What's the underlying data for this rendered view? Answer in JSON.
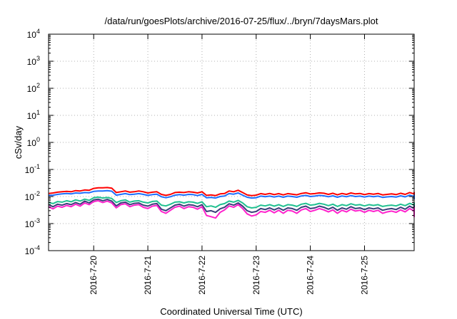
{
  "chart_data": {
    "type": "line",
    "title": "/data/run/goesPlots/archive/2016-07-25/flux/../bryn/7daysMars.plot",
    "xlabel": "Coordinated Universal Time (UTC)",
    "ylabel": "cSv/day",
    "y_scale": "log",
    "ylim": [
      0.0001,
      10000
    ],
    "y_tick_labels": [
      {
        "base": "10",
        "exp": "-4"
      },
      {
        "base": "10",
        "exp": "-3"
      },
      {
        "base": "10",
        "exp": "-2"
      },
      {
        "base": "10",
        "exp": "-1"
      },
      {
        "base": "10",
        "exp": "0"
      },
      {
        "base": "10",
        "exp": "1"
      },
      {
        "base": "10",
        "exp": "2"
      },
      {
        "base": "10",
        "exp": "3"
      },
      {
        "base": "10",
        "exp": "4"
      }
    ],
    "xlim": [
      "2016-07-19 04:00",
      "2016-07-25 22:00"
    ],
    "x_tick_labels": [
      "2016-7-20",
      "2016-7-21",
      "2016-7-22",
      "2016-7-23",
      "2016-7-24",
      "2016-7-25"
    ],
    "grid": true,
    "x_start": "2016-07-19 04:00",
    "x_step_hours": 2,
    "series": [
      {
        "color": "#ff0000",
        "values": [
          0.013,
          0.0135,
          0.0145,
          0.015,
          0.0155,
          0.015,
          0.0165,
          0.016,
          0.0175,
          0.017,
          0.02,
          0.021,
          0.021,
          0.0215,
          0.0205,
          0.014,
          0.015,
          0.016,
          0.0145,
          0.015,
          0.016,
          0.015,
          0.0135,
          0.0145,
          0.015,
          0.012,
          0.011,
          0.012,
          0.014,
          0.0145,
          0.014,
          0.015,
          0.0145,
          0.0135,
          0.015,
          0.011,
          0.0115,
          0.0108,
          0.0125,
          0.013,
          0.016,
          0.015,
          0.017,
          0.014,
          0.0115,
          0.0108,
          0.0112,
          0.0128,
          0.012,
          0.013,
          0.0118,
          0.0128,
          0.0115,
          0.0128,
          0.0122,
          0.0116,
          0.013,
          0.0138,
          0.0124,
          0.0128,
          0.0136,
          0.0132,
          0.012,
          0.0132,
          0.0116,
          0.013,
          0.012,
          0.0135,
          0.0125,
          0.013,
          0.0118,
          0.0128,
          0.0122,
          0.013,
          0.0115,
          0.012,
          0.0125,
          0.0118,
          0.0132,
          0.012,
          0.014,
          0.0125,
          0.0135,
          0.013,
          0.012,
          0.0105,
          0.01,
          0.011,
          0.0125,
          0.013,
          0.014,
          0.0135,
          0.012,
          0.013,
          0.0125,
          0.0122,
          0.0135,
          0.0125,
          0.0132,
          0.012,
          0.0124,
          0.0122,
          0.013,
          0.0126,
          0.0112,
          0.0118,
          0.013,
          0.0125,
          0.011,
          0.0118,
          0.0125,
          0.0135,
          0.013,
          0.014,
          0.0136,
          0.013,
          0.014,
          0.0135,
          0.0126,
          0.0132,
          0.014,
          0.0145
        ]
      },
      {
        "color": "#1e6fff",
        "values": [
          0.011,
          0.0112,
          0.012,
          0.0125,
          0.013,
          0.0125,
          0.0135,
          0.0132,
          0.014,
          0.0138,
          0.0155,
          0.016,
          0.016,
          0.0165,
          0.0158,
          0.0112,
          0.012,
          0.0128,
          0.0118,
          0.0122,
          0.0128,
          0.012,
          0.011,
          0.0118,
          0.0122,
          0.0098,
          0.009,
          0.0098,
          0.0112,
          0.0118,
          0.0112,
          0.012,
          0.0118,
          0.0108,
          0.012,
          0.009,
          0.0093,
          0.0088,
          0.01,
          0.0105,
          0.0128,
          0.0122,
          0.0135,
          0.0112,
          0.0094,
          0.0088,
          0.009,
          0.0104,
          0.0098,
          0.0104,
          0.0096,
          0.0104,
          0.0094,
          0.0104,
          0.01,
          0.0094,
          0.0105,
          0.011,
          0.01,
          0.0104,
          0.011,
          0.0106,
          0.0098,
          0.0106,
          0.0094,
          0.0105,
          0.0098,
          0.0108,
          0.01,
          0.0104,
          0.0096,
          0.0104,
          0.0098,
          0.0104,
          0.0093,
          0.0097,
          0.01,
          0.0095,
          0.0106,
          0.0097,
          0.0112,
          0.01,
          0.0108,
          0.0104,
          0.0096,
          0.0085,
          0.0082,
          0.009,
          0.01,
          0.0105,
          0.0112,
          0.0108,
          0.0097,
          0.0104,
          0.01,
          0.0098,
          0.0108,
          0.01,
          0.0106,
          0.0096,
          0.0099,
          0.0098,
          0.0104,
          0.0101,
          0.009,
          0.0095,
          0.0104,
          0.01,
          0.0089,
          0.0095,
          0.01,
          0.0108,
          0.0104,
          0.0112,
          0.0109,
          0.0104,
          0.0112,
          0.0108,
          0.0101,
          0.0106,
          0.0112,
          0.0116
        ]
      },
      {
        "color": "#20c090",
        "values": [
          0.006,
          0.0055,
          0.0065,
          0.0062,
          0.007,
          0.0064,
          0.0075,
          0.0068,
          0.008,
          0.0072,
          0.009,
          0.0095,
          0.0088,
          0.0092,
          0.0085,
          0.006,
          0.007,
          0.0075,
          0.0062,
          0.0068,
          0.007,
          0.0062,
          0.0058,
          0.0066,
          0.0068,
          0.0048,
          0.0045,
          0.0052,
          0.0062,
          0.0064,
          0.0058,
          0.0064,
          0.0062,
          0.0056,
          0.0064,
          0.0042,
          0.0045,
          0.004,
          0.005,
          0.0055,
          0.0068,
          0.0062,
          0.0072,
          0.0058,
          0.0042,
          0.0038,
          0.004,
          0.0048,
          0.0045,
          0.005,
          0.0044,
          0.005,
          0.0043,
          0.005,
          0.0048,
          0.0043,
          0.0052,
          0.0056,
          0.0048,
          0.005,
          0.0056,
          0.0052,
          0.0046,
          0.0052,
          0.0043,
          0.005,
          0.0046,
          0.0054,
          0.0048,
          0.005,
          0.0045,
          0.005,
          0.0047,
          0.005,
          0.0043,
          0.0046,
          0.0048,
          0.0045,
          0.0052,
          0.0046,
          0.0056,
          0.0048,
          0.0054,
          0.005,
          0.0045,
          0.0038,
          0.0036,
          0.004,
          0.0048,
          0.005,
          0.0056,
          0.0053,
          0.0046,
          0.005,
          0.0048,
          0.0047,
          0.0053,
          0.0048,
          0.0052,
          0.0046,
          0.0047,
          0.0046,
          0.005,
          0.0048,
          0.0042,
          0.0045,
          0.005,
          0.0048,
          0.0042,
          0.0045,
          0.0048,
          0.0053,
          0.005,
          0.0056,
          0.0054,
          0.005,
          0.0056,
          0.0053,
          0.0049,
          0.0052,
          0.0056,
          0.006
        ]
      },
      {
        "color": "#3a3e7a",
        "values": [
          0.005,
          0.0042,
          0.0052,
          0.0048,
          0.0055,
          0.005,
          0.006,
          0.0052,
          0.0068,
          0.0058,
          0.0075,
          0.008,
          0.007,
          0.0078,
          0.0068,
          0.0045,
          0.0058,
          0.0062,
          0.005,
          0.0056,
          0.0058,
          0.0048,
          0.0044,
          0.0052,
          0.0055,
          0.0034,
          0.003,
          0.0038,
          0.0048,
          0.0052,
          0.0044,
          0.005,
          0.0048,
          0.0042,
          0.005,
          0.0028,
          0.003,
          0.0026,
          0.0035,
          0.004,
          0.0054,
          0.0048,
          0.0058,
          0.0044,
          0.003,
          0.0026,
          0.0028,
          0.0036,
          0.0033,
          0.0038,
          0.0032,
          0.0038,
          0.0031,
          0.0038,
          0.0036,
          0.0031,
          0.004,
          0.0044,
          0.0036,
          0.0038,
          0.0044,
          0.004,
          0.0034,
          0.004,
          0.0031,
          0.0038,
          0.0034,
          0.0042,
          0.0036,
          0.0038,
          0.0033,
          0.0038,
          0.0035,
          0.0038,
          0.0031,
          0.0034,
          0.0036,
          0.0033,
          0.004,
          0.0034,
          0.0044,
          0.0036,
          0.0042,
          0.0038,
          0.0033,
          0.0026,
          0.0024,
          0.0028,
          0.0036,
          0.0038,
          0.0044,
          0.0041,
          0.0034,
          0.0038,
          0.0036,
          0.0035,
          0.0041,
          0.0036,
          0.004,
          0.0034,
          0.0035,
          0.0034,
          0.0038,
          0.0036,
          0.003,
          0.0033,
          0.0038,
          0.0036,
          0.003,
          0.0033,
          0.0036,
          0.0041,
          0.0038,
          0.0044,
          0.0042,
          0.0038,
          0.0044,
          0.0041,
          0.0037,
          0.004,
          0.0044,
          0.0048
        ]
      },
      {
        "color": "#ff22cc",
        "values": [
          0.0042,
          0.0035,
          0.0044,
          0.004,
          0.0047,
          0.0042,
          0.0052,
          0.0044,
          0.0058,
          0.005,
          0.0065,
          0.007,
          0.006,
          0.0068,
          0.0058,
          0.0038,
          0.005,
          0.0054,
          0.0042,
          0.0048,
          0.005,
          0.004,
          0.0036,
          0.0044,
          0.0047,
          0.0028,
          0.0024,
          0.0031,
          0.004,
          0.0044,
          0.0036,
          0.0042,
          0.004,
          0.0034,
          0.0042,
          0.002,
          0.0018,
          0.0016,
          0.0026,
          0.0032,
          0.0045,
          0.004,
          0.005,
          0.0036,
          0.0023,
          0.0019,
          0.0021,
          0.0028,
          0.0026,
          0.0031,
          0.0025,
          0.0031,
          0.0024,
          0.0031,
          0.0029,
          0.0024,
          0.0032,
          0.0036,
          0.0028,
          0.0031,
          0.0036,
          0.0032,
          0.0027,
          0.0032,
          0.0024,
          0.0031,
          0.0027,
          0.0034,
          0.0029,
          0.0031,
          0.0026,
          0.0031,
          0.0028,
          0.0031,
          0.0024,
          0.0027,
          0.0029,
          0.0026,
          0.0032,
          0.0027,
          0.0036,
          0.0029,
          0.0034,
          0.0031,
          0.0026,
          0.002,
          0.0018,
          0.0022,
          0.0029,
          0.0031,
          0.0036,
          0.0033,
          0.0027,
          0.0031,
          0.0029,
          0.0028,
          0.0033,
          0.0029,
          0.0032,
          0.0027,
          0.0028,
          0.0027,
          0.0031,
          0.0029,
          0.0023,
          0.0026,
          0.0031,
          0.0029,
          0.0023,
          0.0026,
          0.0029,
          0.0033,
          0.0031,
          0.0036,
          0.0034,
          0.0031,
          0.0036,
          0.0033,
          0.003,
          0.0032,
          0.0036,
          0.004
        ]
      }
    ]
  }
}
